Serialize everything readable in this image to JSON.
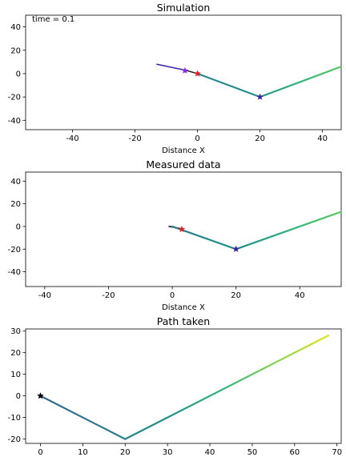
{
  "chart_data": [
    {
      "type": "line",
      "title": "Simulation",
      "xlabel": "Distance X",
      "ylabel": "",
      "annotation": "time = 0.1",
      "xlim": [
        -55,
        46
      ],
      "ylim": [
        -48,
        50
      ],
      "xticks": [
        -40,
        -20,
        0,
        20,
        40
      ],
      "yticks": [
        40,
        20,
        0,
        -20,
        -40
      ],
      "series": [
        {
          "x": [
            -13,
            -4,
            0
          ],
          "y": [
            8,
            3,
            0
          ]
        },
        {
          "x": [
            0,
            20,
            46
          ],
          "y": [
            0,
            -20,
            6
          ]
        }
      ],
      "markers": [
        {
          "x": -4,
          "y": 2.5,
          "color": "#8a2be2"
        },
        {
          "x": 0,
          "y": 0,
          "color": "#e02020"
        },
        {
          "x": 20,
          "y": -20,
          "color": "#3b1f9e"
        }
      ]
    },
    {
      "type": "line",
      "title": "Measured data",
      "xlabel": "Distance X",
      "ylabel": "",
      "xlim": [
        -46,
        53
      ],
      "ylim": [
        -53,
        48
      ],
      "xticks": [
        -40,
        -20,
        0,
        20,
        40
      ],
      "yticks": [
        40,
        20,
        0,
        -20,
        -40
      ],
      "series": [
        {
          "x": [
            -1,
            3
          ],
          "y": [
            0,
            -2
          ]
        },
        {
          "x": [
            0,
            20,
            53
          ],
          "y": [
            0,
            -20,
            13
          ]
        }
      ],
      "markers": [
        {
          "x": 3,
          "y": -2.5,
          "color": "#e02020"
        },
        {
          "x": 20,
          "y": -20,
          "color": "#3b1f9e"
        }
      ]
    },
    {
      "type": "line",
      "title": "Path taken",
      "xlabel": "",
      "ylabel": "",
      "xlim": [
        -3.5,
        71
      ],
      "ylim": [
        -22,
        31
      ],
      "xticks": [
        0,
        10,
        20,
        30,
        40,
        50,
        60,
        70
      ],
      "yticks": [
        30,
        20,
        10,
        0,
        -10,
        -20
      ],
      "series": [
        {
          "x": [
            0,
            20,
            68
          ],
          "y": [
            0,
            -20,
            28
          ]
        }
      ],
      "markers": [
        {
          "x": 0,
          "y": 0,
          "color": "#000000"
        }
      ]
    }
  ]
}
